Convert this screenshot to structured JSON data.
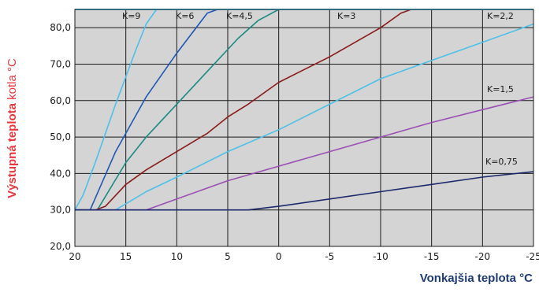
{
  "chart_data": {
    "type": "line",
    "xlabel": "Vonkajšia teplota °C",
    "ylabel_bold": "Výstupná teplota",
    "ylabel_rest": " kotla °C",
    "label_color": "#e8383d",
    "xlabel_color": "#1f3b73",
    "x_reversed": true,
    "xlim": [
      20,
      -25
    ],
    "ylim": [
      20,
      85
    ],
    "x_ticks": [
      20,
      15,
      10,
      5,
      0,
      -5,
      -10,
      -15,
      -20,
      -25
    ],
    "x_tick_labels": [
      "20",
      "15",
      "10",
      "5",
      "0",
      "-5",
      "-10",
      "-15",
      "-20",
      "-25"
    ],
    "y_ticks": [
      20,
      30,
      40,
      50,
      60,
      70,
      80
    ],
    "y_tick_labels": [
      "20,0",
      "30,0",
      "40,0",
      "50,0",
      "60,0",
      "70,0",
      "80,0"
    ],
    "grid": true,
    "plot_background": "#d4d4d4",
    "series": [
      {
        "name": "K=9",
        "color": "#4dc0ea",
        "points": [
          [
            20,
            30
          ],
          [
            19.2,
            34
          ],
          [
            18,
            43
          ],
          [
            16,
            59
          ],
          [
            14,
            74
          ],
          [
            13,
            81
          ],
          [
            12,
            85
          ]
        ]
      },
      {
        "name": "K=6",
        "color": "#1f57b5",
        "points": [
          [
            20,
            30
          ],
          [
            18.5,
            30
          ],
          [
            16,
            46
          ],
          [
            13,
            61
          ],
          [
            10,
            73
          ],
          [
            7,
            84
          ],
          [
            6,
            85
          ]
        ]
      },
      {
        "name": "K=4,5",
        "color": "#1a8a82",
        "points": [
          [
            20,
            30
          ],
          [
            17.8,
            30
          ],
          [
            15,
            43
          ],
          [
            13,
            50
          ],
          [
            10,
            59
          ],
          [
            7,
            68
          ],
          [
            4,
            77
          ],
          [
            2,
            82
          ],
          [
            0,
            85
          ]
        ]
      },
      {
        "name": "K=3",
        "color": "#8b1a1a",
        "points": [
          [
            20,
            30
          ],
          [
            18,
            30
          ],
          [
            17,
            31
          ],
          [
            15,
            37
          ],
          [
            13,
            41
          ],
          [
            10,
            46
          ],
          [
            7,
            51
          ],
          [
            5,
            55.5
          ],
          [
            3,
            59
          ],
          [
            0,
            65
          ],
          [
            -5,
            72
          ],
          [
            -10,
            80
          ],
          [
            -12,
            84
          ],
          [
            -13,
            85
          ]
        ]
      },
      {
        "name": "K=2,2",
        "color": "#4dc0ea",
        "points": [
          [
            20,
            30
          ],
          [
            16,
            30
          ],
          [
            13,
            35
          ],
          [
            10,
            39
          ],
          [
            5,
            46
          ],
          [
            0,
            52
          ],
          [
            -5,
            59
          ],
          [
            -10,
            66
          ],
          [
            -15,
            71
          ],
          [
            -20,
            76
          ],
          [
            -25,
            81
          ]
        ]
      },
      {
        "name": "K=1,5",
        "color": "#9b4fb5",
        "points": [
          [
            20,
            30
          ],
          [
            13,
            30
          ],
          [
            10,
            33
          ],
          [
            5,
            38
          ],
          [
            0,
            42
          ],
          [
            -5,
            46
          ],
          [
            -10,
            50
          ],
          [
            -15,
            54
          ],
          [
            -20,
            57.5
          ],
          [
            -25,
            61
          ]
        ]
      },
      {
        "name": "K=0,75",
        "color": "#1c2a6b",
        "points": [
          [
            20,
            30
          ],
          [
            3,
            30
          ],
          [
            0,
            31
          ],
          [
            -5,
            33
          ],
          [
            -10,
            35
          ],
          [
            -15,
            37
          ],
          [
            -20,
            39
          ],
          [
            -25,
            40.5
          ]
        ]
      }
    ]
  }
}
